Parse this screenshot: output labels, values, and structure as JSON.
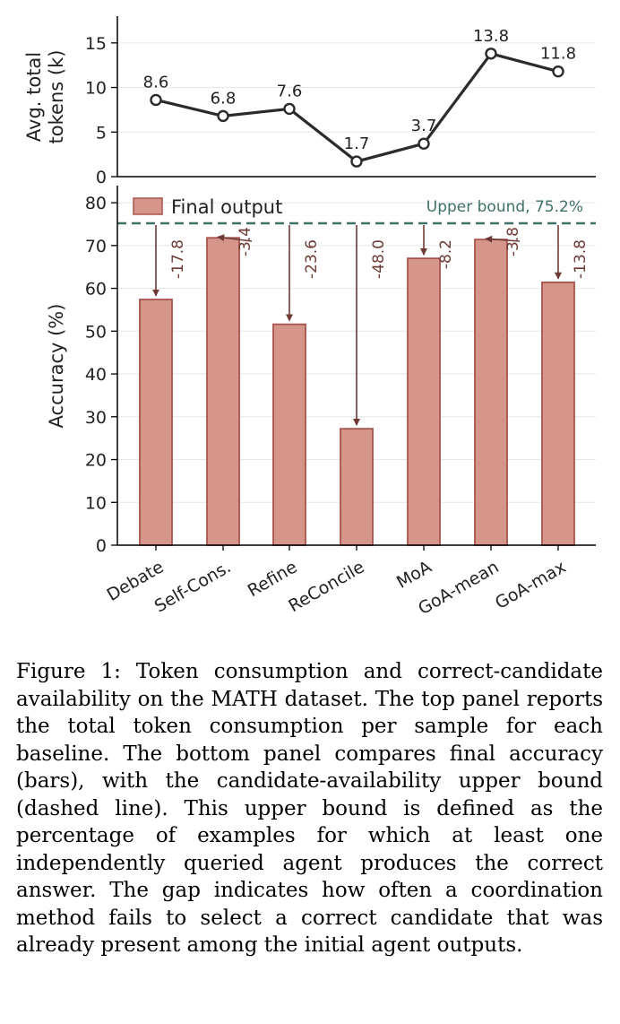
{
  "chart_data": [
    {
      "type": "line",
      "panel": "top",
      "ylabel_line1": "Avg. total",
      "ylabel_line2": "tokens (k)",
      "ylim": [
        0,
        18
      ],
      "yticks": [
        0,
        5,
        10,
        15
      ],
      "grid": true,
      "categories": [
        "Debate",
        "Self-Cons.",
        "Refine",
        "ReConcile",
        "MoA",
        "GoA-mean",
        "GoA-max"
      ],
      "values": [
        8.6,
        6.8,
        7.6,
        1.7,
        3.7,
        13.8,
        11.8
      ],
      "data_labels": [
        "8.6",
        "6.8",
        "7.6",
        "1.7",
        "3.7",
        "13.8",
        "11.8"
      ]
    },
    {
      "type": "bar",
      "panel": "bottom",
      "ylabel": "Accuracy (%)",
      "ylim": [
        0,
        84
      ],
      "yticks": [
        0,
        10,
        20,
        30,
        40,
        50,
        60,
        70,
        80
      ],
      "grid": true,
      "categories": [
        "Debate",
        "Self-Cons.",
        "Refine",
        "ReConcile",
        "MoA",
        "GoA-mean",
        "GoA-max"
      ],
      "series": [
        {
          "name": "Final output",
          "values": [
            57.4,
            71.8,
            51.6,
            27.2,
            67.0,
            71.4,
            61.4
          ]
        }
      ],
      "gaps": [
        -17.8,
        -3.4,
        -23.6,
        -48.0,
        -8.2,
        -3.8,
        -13.8
      ],
      "gap_labels": [
        "-17.8",
        "-3.4",
        "-23.6",
        "-48.0",
        "-8.2",
        "-3.8",
        "-13.8"
      ],
      "upper_bound": 75.2,
      "upper_bound_label": "Upper bound, 75.2%",
      "legend_position": "top-left"
    }
  ],
  "caption": "Figure 1: Token consumption and correct-candidate availability on the MATH dataset. The top panel reports the total token consumption per sample for each baseline. The bottom panel compares final accuracy (bars), with the candidate-availability upper bound (dashed line). This upper bound is defined as the percentage of examples for which at least one independently queried agent produces the correct answer. The gap indicates how often a coordination method fails to select a correct candidate that was already present among the initial agent outputs.",
  "colors": {
    "bar_fill": "#d6958b",
    "bar_edge": "#a8544b",
    "arrow": "#6e3a35",
    "dashed": "#3f7068",
    "line": "#2b2b2b",
    "grid": "#e6e6e6"
  }
}
